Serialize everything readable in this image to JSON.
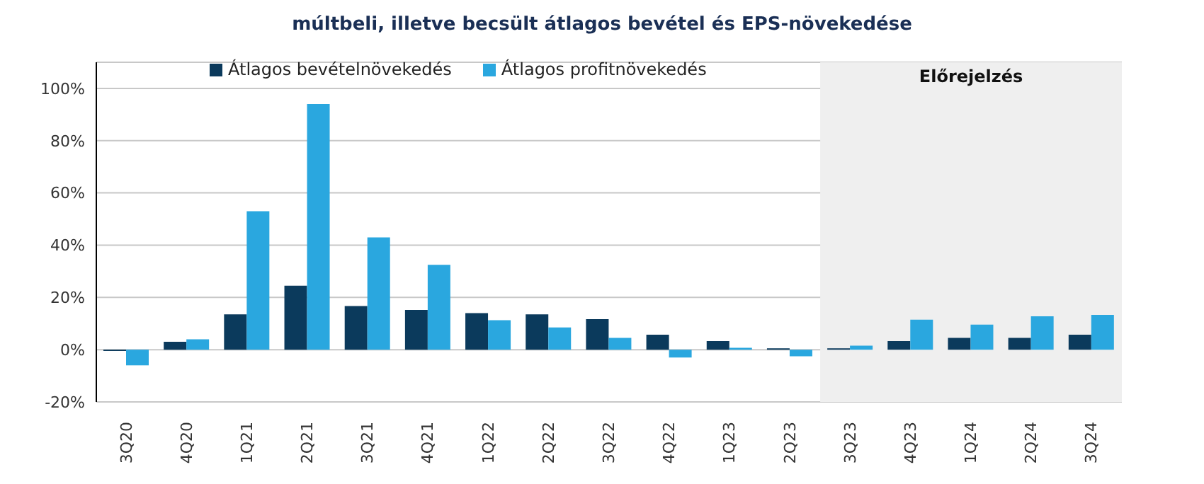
{
  "chart_data": {
    "type": "bar",
    "title": "múltbeli, illetve becsült átlagos bevétel és EPS-növekedése",
    "categories": [
      "3Q20",
      "4Q20",
      "1Q21",
      "2Q21",
      "3Q21",
      "4Q21",
      "1Q22",
      "2Q22",
      "3Q22",
      "4Q22",
      "1Q23",
      "2Q23",
      "3Q23",
      "4Q23",
      "1Q24",
      "2Q24",
      "3Q24"
    ],
    "series": [
      {
        "name": "Átlagos bevételnövekedés",
        "color": "#0b3a5c",
        "values": [
          -0.5,
          3,
          13.5,
          24.5,
          16.7,
          15.2,
          14,
          13.5,
          11.7,
          5.7,
          3.3,
          0.5,
          0.5,
          3.3,
          4.5,
          4.5,
          5.7
        ]
      },
      {
        "name": "Átlagos profitnövekedés",
        "color": "#2aa7df",
        "values": [
          -6,
          4,
          53,
          94,
          43,
          32.5,
          11.3,
          8.5,
          4.5,
          -3,
          0.7,
          -2.5,
          1.5,
          11.5,
          9.6,
          12.8,
          13.3
        ]
      }
    ],
    "ylim": [
      -20,
      110
    ],
    "yticks": [
      {
        "value": -20,
        "label": "-20%"
      },
      {
        "value": 0,
        "label": "0%"
      },
      {
        "value": 20,
        "label": "20%"
      },
      {
        "value": 40,
        "label": "40%"
      },
      {
        "value": 60,
        "label": "60%"
      },
      {
        "value": 80,
        "label": "80%"
      },
      {
        "value": 100,
        "label": "100%"
      }
    ],
    "bands": [
      {
        "axis": "x",
        "from": "3Q23",
        "to": "3Q24",
        "label": "Előrejelzés",
        "color": "#efefef"
      }
    ],
    "grid": "y",
    "legend": "top left"
  }
}
